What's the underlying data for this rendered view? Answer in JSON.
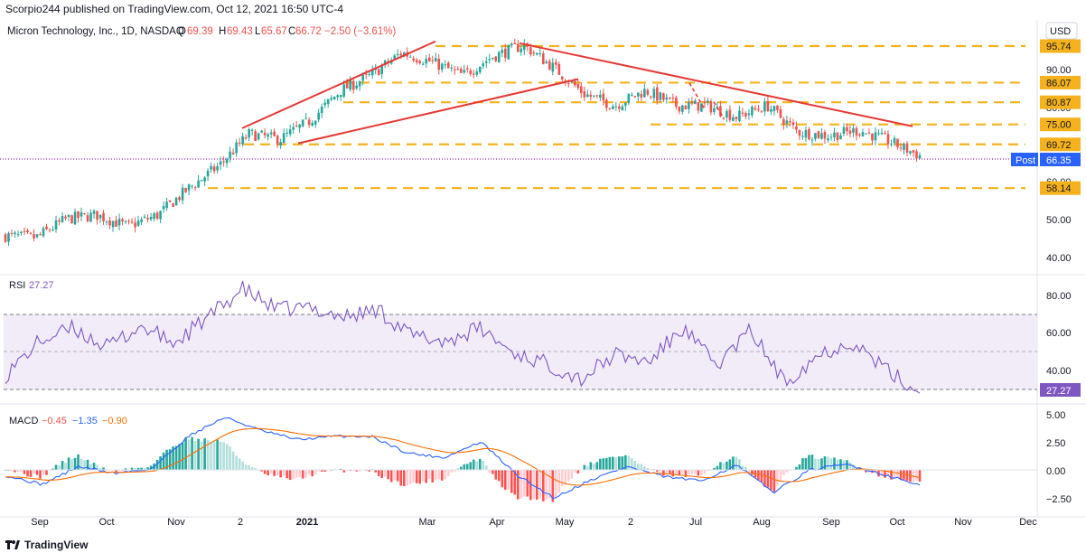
{
  "header": {
    "publisher_line": "Scorpio244 published on TradingView.com, Oct 12, 2021 16:50 UTC-4"
  },
  "legend": {
    "symbol": "Micron Technology, Inc., 1D, NASDAQ",
    "o_label": "O",
    "o_value": "69.39",
    "h_label": "H",
    "h_value": "69.43",
    "l_label": "L",
    "l_value": "65.67",
    "c_label": "C",
    "c_value": "66.72",
    "change": "−2.50 (−3.61%)"
  },
  "price_axis": {
    "currency": "USD",
    "ticks": [
      "90.00",
      "80.00",
      "70.00",
      "60.00",
      "50.00",
      "40.00"
    ],
    "levels": [
      "95.74",
      "86.07",
      "80.87",
      "75.00",
      "69.72",
      "58.14"
    ],
    "post_label": "Post",
    "post_value": "66.35"
  },
  "rsi": {
    "label": "RSI",
    "value": "27.27",
    "ticks": [
      "80.00",
      "60.00",
      "40.00"
    ]
  },
  "macd": {
    "label": "MACD",
    "hist": "−0.45",
    "macd": "−1.35",
    "signal": "−0.90",
    "ticks": [
      "5.00",
      "2.50",
      "0.00",
      "−2.50"
    ]
  },
  "time_axis": [
    "Sep",
    "Oct",
    "Nov",
    "2",
    "2021",
    "Mar",
    "Apr",
    "May",
    "2",
    "Jul",
    "Aug",
    "Sep",
    "Oct",
    "Nov",
    "Dec"
  ],
  "footer": {
    "brand": "TradingView"
  },
  "colors": {
    "up": "#26a69a",
    "down": "#ef5350",
    "level": "#f5b21c",
    "trend": "#e53935",
    "rsi_line": "#7e57c2",
    "rsi_band": "#ede7f6",
    "macd_line": "#2962ff",
    "signal_line": "#ff6d00",
    "hist_up_strong": "#26a69a",
    "hist_up_weak": "#b2dfdb",
    "hist_down_strong": "#ff5252",
    "hist_down_weak": "#ffcdd2"
  },
  "chart_data": {
    "type": "candlestick",
    "symbol": "MU",
    "timeframe": "1D",
    "indicators": [
      "RSI",
      "MACD"
    ],
    "price_range": [
      37,
      100
    ],
    "horizontal_levels": [
      95.74,
      86.07,
      80.87,
      75.0,
      69.72,
      58.14
    ],
    "trendlines": [
      {
        "from": [
          "Nov 2020",
          74.0
        ],
        "to": [
          "Mar 2021",
          97.0
        ]
      },
      {
        "from": [
          "Dec 2020",
          70.0
        ],
        "to": [
          "Apr 2021",
          87.0
        ]
      },
      {
        "from": [
          "Apr 2021",
          96.5
        ],
        "to": [
          "Oct 2021",
          74.5
        ]
      }
    ],
    "close_path": [
      [
        "Aug 2020",
        45.5
      ],
      [
        "Sep 2020",
        45.0
      ],
      [
        "Sep 2020",
        50.0
      ],
      [
        "Oct 2020",
        51.0
      ],
      [
        "Oct 2020",
        48.0
      ],
      [
        "Nov 2020",
        51.0
      ],
      [
        "Nov 2020",
        58.0
      ],
      [
        "Nov 2020",
        64.0
      ],
      [
        "Dec 2020",
        72.5
      ],
      [
        "Dec 2020",
        71.0
      ],
      [
        "Jan 2021",
        76.0
      ],
      [
        "Jan 2021",
        84.0
      ],
      [
        "Feb 2021",
        88.0
      ],
      [
        "Feb 2021",
        94.0
      ],
      [
        "Mar 2021",
        91.5
      ],
      [
        "Mar 2021",
        88.0
      ],
      [
        "Apr 2021",
        93.0
      ],
      [
        "Apr 2021",
        96.0
      ],
      [
        "Apr 2021",
        90.0
      ],
      [
        "May 2021",
        83.0
      ],
      [
        "May 2021",
        80.0
      ],
      [
        "Jun 2021",
        84.0
      ],
      [
        "Jun 2021",
        80.0
      ],
      [
        "Jul 2021",
        80.0
      ],
      [
        "Jul 2021",
        77.0
      ],
      [
        "Aug 2021",
        80.0
      ],
      [
        "Aug 2021",
        73.0
      ],
      [
        "Sep 2021",
        72.0
      ],
      [
        "Sep 2021",
        73.5
      ],
      [
        "Oct 2021",
        70.5
      ],
      [
        "Oct 2021",
        66.72
      ]
    ],
    "rsi_path": [
      [
        "Aug 2020",
        37
      ],
      [
        "Sep 2020",
        55
      ],
      [
        "Sep 2020",
        62
      ],
      [
        "Oct 2020",
        52
      ],
      [
        "Oct 2020",
        63
      ],
      [
        "Nov 2020",
        54
      ],
      [
        "Nov 2020",
        68
      ],
      [
        "Dec 2020",
        83
      ],
      [
        "Dec 2020",
        72
      ],
      [
        "Jan 2021",
        73
      ],
      [
        "Jan 2021",
        68
      ],
      [
        "Feb 2021",
        72
      ],
      [
        "Mar 2021",
        58
      ],
      [
        "Mar 2021",
        55
      ],
      [
        "Apr 2021",
        62
      ],
      [
        "Apr 2021",
        49
      ],
      [
        "May 2021",
        43
      ],
      [
        "May 2021",
        35
      ],
      [
        "Jun 2021",
        48
      ],
      [
        "Jun 2021",
        44
      ],
      [
        "Jul 2021",
        62
      ],
      [
        "Jul 2021",
        42
      ],
      [
        "Aug 2021",
        61
      ],
      [
        "Aug 2021",
        33
      ],
      [
        "Sep 2021",
        48
      ],
      [
        "Sep 2021",
        55
      ],
      [
        "Oct 2021",
        40
      ],
      [
        "Oct 2021",
        27.27
      ]
    ],
    "macd_path": [
      [
        "Aug 2020",
        -0.5
      ],
      [
        "Sep 2020",
        -1.3
      ],
      [
        "Oct 2020",
        0.3
      ],
      [
        "Oct 2020",
        -0.3
      ],
      [
        "Nov 2020",
        0.1
      ],
      [
        "Dec 2020",
        3.0
      ],
      [
        "Dec 2020",
        4.7
      ],
      [
        "Jan 2021",
        3.5
      ],
      [
        "Jan 2021",
        2.7
      ],
      [
        "Feb 2021",
        3.0
      ],
      [
        "Mar 2021",
        3.0
      ],
      [
        "Mar 2021",
        1.5
      ],
      [
        "Apr 2021",
        1.1
      ],
      [
        "Apr 2021",
        2.5
      ],
      [
        "May 2021",
        -0.5
      ],
      [
        "May 2021",
        -2.5
      ],
      [
        "Jun 2021",
        -0.9
      ],
      [
        "Jun 2021",
        0.3
      ],
      [
        "Jul 2021",
        -0.6
      ],
      [
        "Jul 2021",
        -1.0
      ],
      [
        "Aug 2021",
        0.4
      ],
      [
        "Aug 2021",
        -2.0
      ],
      [
        "Sep 2021",
        0.0
      ],
      [
        "Sep 2021",
        0.5
      ],
      [
        "Oct 2021",
        -0.4
      ],
      [
        "Oct 2021",
        -1.35
      ]
    ]
  }
}
